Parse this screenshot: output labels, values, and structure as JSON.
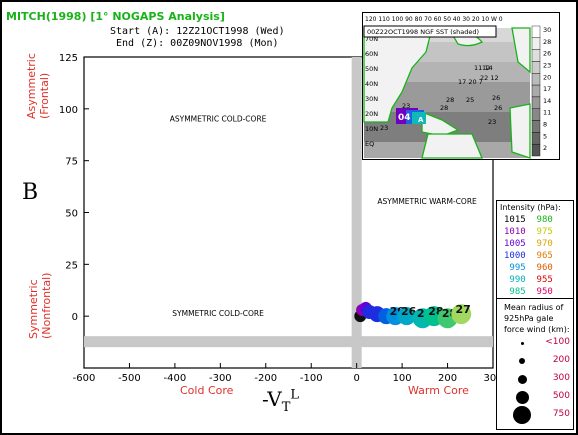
{
  "title": "MITCH(1998) [1° NOGAPS Analysis]",
  "start_text": "Start (A): 12Z21OCT1998 (Wed)",
  "end_text": "End (Z): 00Z09NOV1998 (Mon)",
  "panel_letter": "B",
  "vtl_label": "-V",
  "vtl_sub": "T",
  "vtl_sup": "L",
  "inset": {
    "label": "00Z22OCT1998 NGF SST (shaded)",
    "top_ticks": "120 110 100 90 80 70 60 50 40 30 20 10 W 0",
    "lat_labels": [
      "70N",
      "60N",
      "50N",
      "40N",
      "30N",
      "20N",
      "10N",
      "EQ"
    ],
    "sst_scale": [
      "30",
      "28",
      "26",
      "23",
      "20",
      "17",
      "14",
      "11",
      "8",
      "5",
      "2"
    ],
    "sst_values": [
      "11 14",
      "22 12",
      "17 20 7",
      "28",
      "25",
      "26",
      "23",
      "28",
      "23",
      "23",
      "26",
      "04",
      "12"
    ],
    "start_mark": "A"
  },
  "legend": {
    "intensity_title": "Intensity (hPa):",
    "intensity": [
      {
        "left": "1015",
        "left_color": "#000000",
        "right": "980",
        "right_color": "#19b319"
      },
      {
        "left": "1010",
        "left_color": "#8b00b5",
        "right": "975",
        "right_color": "#c8c800"
      },
      {
        "left": "1005",
        "left_color": "#6a00d6",
        "right": "970",
        "right_color": "#e0a000"
      },
      {
        "left": "1000",
        "left_color": "#1e2de0",
        "right": "965",
        "right_color": "#e07a00"
      },
      {
        "left": "995",
        "left_color": "#0090e0",
        "right": "960",
        "right_color": "#e05a00"
      },
      {
        "left": "990",
        "left_color": "#00b0c0",
        "right": "955",
        "right_color": "#e00000"
      },
      {
        "left": "985",
        "left_color": "#00c090",
        "right": "950",
        "right_color": "#e00060"
      }
    ],
    "radius_title": [
      "Mean radius of",
      "925hPa gale",
      "force wind (km):"
    ],
    "radius": [
      "<100",
      "200",
      "300",
      "500",
      "750"
    ]
  },
  "chart_data": {
    "type": "scatter",
    "title": "MITCH(1998) [1° NOGAPS Analysis]",
    "xlabel_left": "Cold Core",
    "xlabel_right": "Warm Core",
    "ylabel_top": [
      "Asymmetric",
      "(Frontal)"
    ],
    "ylabel_bottom": [
      "Symmetric",
      "(Nonfrontal)"
    ],
    "xlim": [
      -600,
      300
    ],
    "ylim": [
      -25,
      125
    ],
    "x_ticks": [
      "-600",
      "-500",
      "-400",
      "-300",
      "-200",
      "-100",
      "0",
      "100",
      "200",
      "300"
    ],
    "y_ticks": [
      "0",
      "25",
      "50",
      "75",
      "100",
      "125"
    ],
    "x_tick_values": [
      -600,
      -500,
      -400,
      -300,
      -200,
      -100,
      0,
      100,
      200,
      300
    ],
    "y_tick_values": [
      0,
      25,
      50,
      75,
      100,
      125
    ],
    "quadrants": [
      "ASYMMETRIC COLD-CORE",
      "ASYMMETRIC WARM-CORE",
      "SYMMETRIC COLD-CORE",
      "SYMMETRIC WARM-CORE"
    ],
    "points": [
      {
        "x": 8,
        "y": 0,
        "size": 12,
        "color": "#111111",
        "label": ""
      },
      {
        "x": 12,
        "y": 3,
        "size": 12,
        "color": "#8b00b5",
        "label": ""
      },
      {
        "x": 20,
        "y": 4,
        "size": 12,
        "color": "#6a00d6",
        "label": ""
      },
      {
        "x": 28,
        "y": 2,
        "size": 14,
        "color": "#1e2de0",
        "label": ""
      },
      {
        "x": 45,
        "y": 1,
        "size": 16,
        "color": "#1e2de0",
        "label": ""
      },
      {
        "x": 65,
        "y": 0,
        "size": 16,
        "color": "#0060e0",
        "label": ""
      },
      {
        "x": 85,
        "y": 0,
        "size": 18,
        "color": "#0090e0",
        "label": "29"
      },
      {
        "x": 110,
        "y": 0,
        "size": 18,
        "color": "#00a8c8",
        "label": "26"
      },
      {
        "x": 145,
        "y": -1,
        "size": 20,
        "color": "#00b8b0",
        "label": "26"
      },
      {
        "x": 170,
        "y": 0,
        "size": 20,
        "color": "#00c090",
        "label": "28"
      },
      {
        "x": 200,
        "y": -1,
        "size": 20,
        "color": "#40c870",
        "label": "28"
      },
      {
        "x": 230,
        "y": 1,
        "size": 20,
        "color": "#a0d860",
        "label": "27"
      }
    ],
    "segments": [
      [
        [
          10,
          2
        ],
        [
          22,
          5
        ]
      ],
      [
        [
          15,
          4
        ],
        [
          30,
          1
        ]
      ]
    ]
  }
}
